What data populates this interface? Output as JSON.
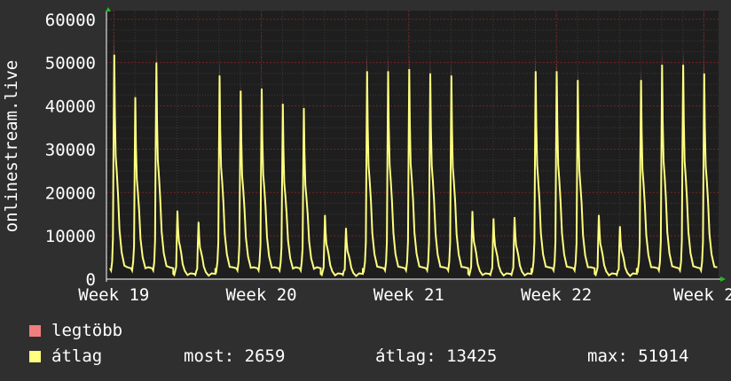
{
  "chart_data": {
    "type": "area",
    "ylabel": "onlinestream.live",
    "ylim": [
      0,
      62000
    ],
    "yticks": [
      0,
      10000,
      20000,
      30000,
      40000,
      50000,
      60000
    ],
    "x_range_weeks": [
      18.95,
      23.1
    ],
    "xticks": [
      {
        "label": "Week 19",
        "x": 19
      },
      {
        "label": "Week 20",
        "x": 20
      },
      {
        "label": "Week 21",
        "x": 21
      },
      {
        "label": "Week 22",
        "x": 22
      },
      {
        "label": "Week 2",
        "x": 23
      }
    ],
    "grid": true,
    "series": [
      {
        "name": "legtöbb",
        "color": "#f07e7e",
        "daily_peaks": [
          56000,
          44000,
          53800,
          16300,
          14000,
          50800,
          45500,
          46000,
          42300,
          41500,
          15500,
          12500,
          52200,
          51800,
          51800,
          50500,
          50300,
          16200,
          14600,
          14800,
          51800,
          51000,
          48900,
          15500,
          12800,
          48800,
          52800,
          53000,
          50900
        ]
      },
      {
        "name": "átlag",
        "color": "#ffff80",
        "daily_peaks": [
          51800,
          42000,
          50000,
          15800,
          13200,
          47000,
          43500,
          44000,
          40500,
          39500,
          14800,
          11800,
          48000,
          48000,
          48500,
          47500,
          47000,
          15700,
          14000,
          14300,
          48000,
          48000,
          46000,
          14800,
          12200,
          46000,
          49500,
          49500,
          47500
        ]
      }
    ]
  },
  "legend": {
    "max_label": "legtöbb",
    "avg_label": "átlag"
  },
  "stats": {
    "current": "most: 2659",
    "average": "átlag: 13425",
    "max": "max: 51914"
  },
  "colors": {
    "background": "#2f2f2f",
    "plot_background": "#1e1e1e",
    "grid_minor": "#3a3a3a",
    "grid_major": "#7a2020",
    "max_fill": "#f07e7e",
    "avg_line": "#ffff80",
    "axis_arrow": "#22bb22",
    "text": "#ffffff"
  }
}
